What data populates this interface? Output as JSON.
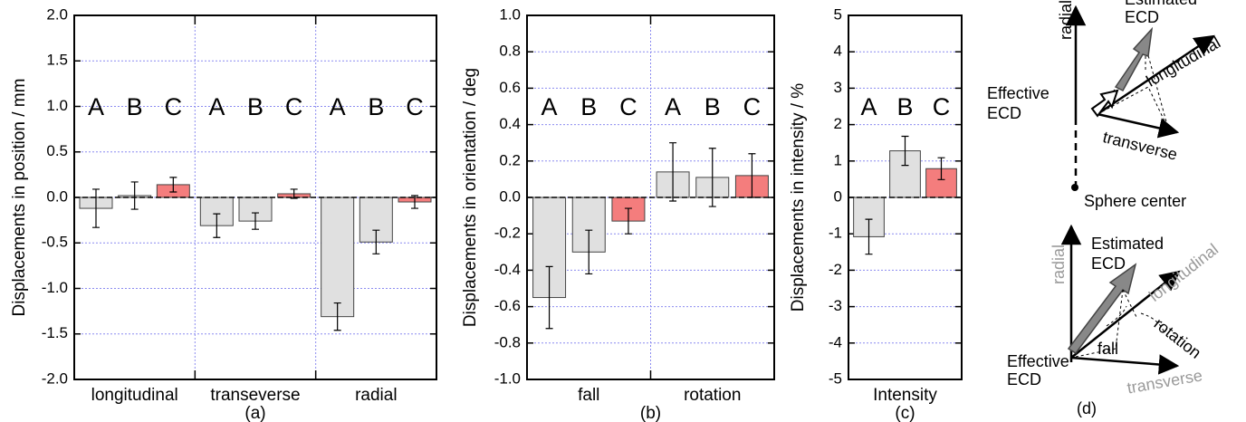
{
  "chart_data": [
    {
      "type": "bar",
      "ylabel": "Displacements in position / mm",
      "caption": "(a)",
      "categories": [
        "longitudinal",
        "transeverse",
        "radial"
      ],
      "series": [
        {
          "name": "A",
          "color": "#e0e0e0",
          "values": [
            -0.12,
            -0.31,
            -1.31
          ],
          "errors": [
            0.21,
            0.13,
            0.15
          ]
        },
        {
          "name": "B",
          "color": "#e0e0e0",
          "values": [
            0.02,
            -0.26,
            -0.49
          ],
          "errors": [
            0.15,
            0.09,
            0.13
          ]
        },
        {
          "name": "C",
          "color": "#f47d7d",
          "values": [
            0.14,
            0.04,
            -0.05
          ],
          "errors": [
            0.08,
            0.05,
            0.07
          ]
        }
      ],
      "ylim": [
        -2,
        2
      ],
      "yticks": [
        {
          "value": -2,
          "label": "-2.0"
        },
        {
          "value": -1.5,
          "label": "-1.5"
        },
        {
          "value": -1,
          "label": "-1.0"
        },
        {
          "value": -0.5,
          "label": "-0.5"
        },
        {
          "value": 0,
          "label": "0.0"
        },
        {
          "value": 0.5,
          "label": "0.5"
        },
        {
          "value": 1,
          "label": "1.0"
        },
        {
          "value": 1.5,
          "label": "1.5"
        },
        {
          "value": 2,
          "label": "2.0"
        }
      ],
      "grid": true
    },
    {
      "type": "bar",
      "ylabel": "Displacements in orientation / deg",
      "caption": "(b)",
      "categories": [
        "fall",
        "rotation"
      ],
      "series": [
        {
          "name": "A",
          "color": "#e0e0e0",
          "values": [
            -0.55,
            0.14
          ],
          "errors": [
            0.17,
            0.16
          ]
        },
        {
          "name": "B",
          "color": "#e0e0e0",
          "values": [
            -0.3,
            0.11
          ],
          "errors": [
            0.12,
            0.16
          ]
        },
        {
          "name": "C",
          "color": "#f47d7d",
          "values": [
            -0.13,
            0.12
          ],
          "errors": [
            0.07,
            0.12
          ]
        }
      ],
      "ylim": [
        -1,
        1
      ],
      "yticks": [
        {
          "value": -1,
          "label": "-1.0"
        },
        {
          "value": -0.8,
          "label": "-0.8"
        },
        {
          "value": -0.6,
          "label": "-0.6"
        },
        {
          "value": -0.4,
          "label": "-0.4"
        },
        {
          "value": -0.2,
          "label": "-0.2"
        },
        {
          "value": 0,
          "label": "0.0"
        },
        {
          "value": 0.2,
          "label": "0.2"
        },
        {
          "value": 0.4,
          "label": "0.4"
        },
        {
          "value": 0.6,
          "label": "0.6"
        },
        {
          "value": 0.8,
          "label": "0.8"
        },
        {
          "value": 1,
          "label": "1.0"
        }
      ],
      "grid": true
    },
    {
      "type": "bar",
      "ylabel": "Displacements in intensity / %",
      "caption": "(c)",
      "categories": [
        "Intensity"
      ],
      "series": [
        {
          "name": "A",
          "color": "#e0e0e0",
          "values": [
            -1.08
          ],
          "errors": [
            0.48
          ]
        },
        {
          "name": "B",
          "color": "#e0e0e0",
          "values": [
            1.28
          ],
          "errors": [
            0.4
          ]
        },
        {
          "name": "C",
          "color": "#f47d7d",
          "values": [
            0.79
          ],
          "errors": [
            0.3
          ]
        }
      ],
      "ylim": [
        -5,
        5
      ],
      "yticks": [
        -5,
        -4,
        -3,
        -2,
        -1,
        0,
        1,
        2,
        3,
        4,
        5
      ],
      "grid": true
    }
  ],
  "diagram": {
    "top": {
      "radial": "radial",
      "estimated": [
        "Estimated",
        "ECD"
      ],
      "longitudinal": "longitudinal",
      "effective": [
        "Effective",
        "ECD"
      ],
      "transverse": "transverse",
      "center": "Sphere center"
    },
    "bottom": {
      "radial": "radial",
      "estimated": [
        "Estimated",
        "ECD"
      ],
      "longitudinal": "longitudinal",
      "rotation": "rotation",
      "fall": "fall",
      "effective": [
        "Effective",
        "ECD"
      ],
      "transverse": "transverse"
    },
    "caption": "(d)"
  }
}
